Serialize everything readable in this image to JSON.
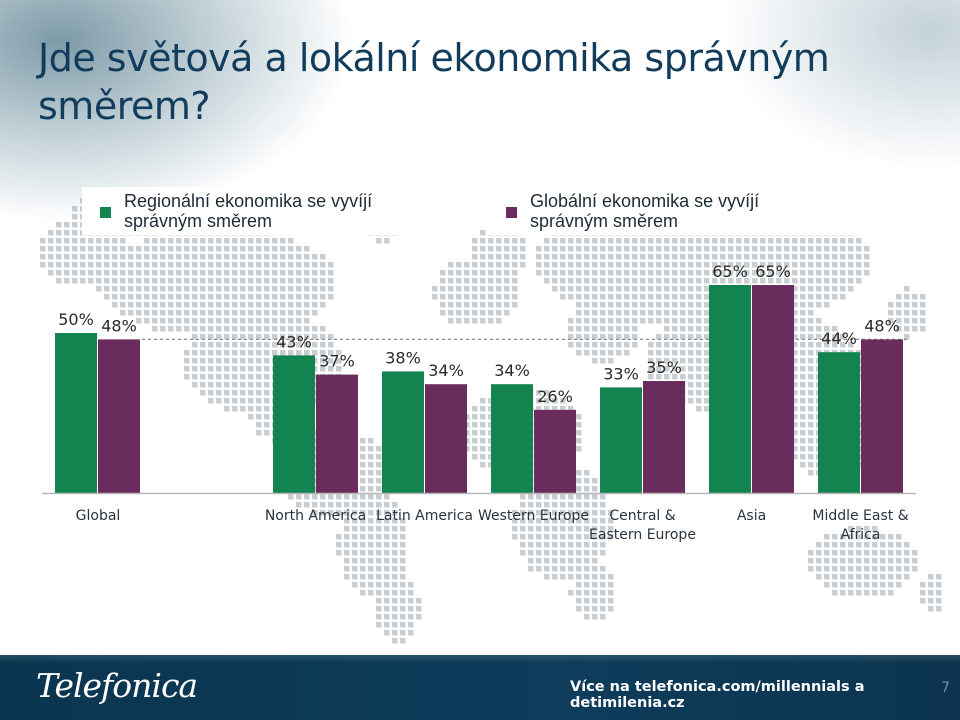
{
  "title": "Jde světová a lokální ekonomika správným směrem?",
  "colors": {
    "regional": "#138350",
    "global": "#6a2c5c",
    "title": "#123c5c",
    "footer": "#0d3856"
  },
  "legend": [
    {
      "label": "Regionální ekonomika se vyvíjí správným směrem",
      "series": "regional"
    },
    {
      "label": "Globální ekonomika se vyvíjí správným směrem",
      "series": "global"
    }
  ],
  "chart_data": {
    "type": "bar",
    "categories": [
      "Global",
      "North America",
      "Latin America",
      "Western Europe",
      "Central & Eastern Europe",
      "Asia",
      "Middle East & Africa"
    ],
    "category_lines": [
      [
        "Global"
      ],
      [
        "North America"
      ],
      [
        "Latin America"
      ],
      [
        "Western Europe"
      ],
      [
        "Central &",
        "Eastern Europe"
      ],
      [
        "Asia"
      ],
      [
        "Middle East &",
        "Africa"
      ]
    ],
    "series": [
      {
        "key": "regional",
        "values": [
          50,
          43,
          38,
          34,
          33,
          65,
          44
        ]
      },
      {
        "key": "global",
        "values": [
          48,
          37,
          34,
          26,
          35,
          65,
          48
        ]
      }
    ],
    "ylim": [
      0,
      65
    ],
    "value_suffix": "%",
    "reference_line": 48,
    "grid": false
  },
  "footer": {
    "logo": "Telefonica",
    "link": "Více na telefonica.com/millennials a detimilenia.cz",
    "page_number": "7"
  }
}
